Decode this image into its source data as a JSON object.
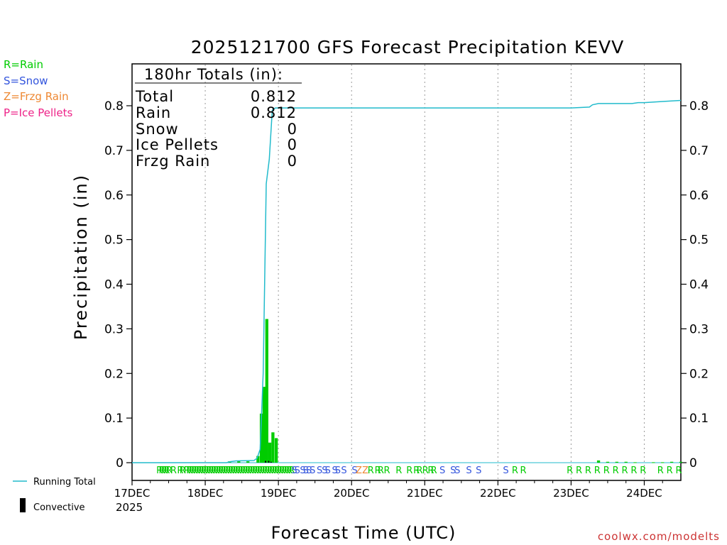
{
  "chart_data": {
    "type": "bar",
    "title": "2025121700 GFS Forecast Precipitation KEVV",
    "xlabel": "Forecast Time (UTC)",
    "ylabel": "Precipitation (in)",
    "ylim": [
      0,
      0.9
    ],
    "xlim_hours": [
      0,
      180
    ],
    "y_ticks": [
      0,
      0.1,
      0.2,
      0.3,
      0.4,
      0.5,
      0.6,
      0.7,
      0.8
    ],
    "y_tick_labels": [
      "0",
      "0.1",
      "0.2",
      "0.3",
      "0.4",
      "0.5",
      "0.6",
      "0.7",
      "0.8"
    ],
    "x_ticks": [
      {
        "hour": 0,
        "label": "17DEC",
        "sublabel": "2025"
      },
      {
        "hour": 24,
        "label": "18DEC"
      },
      {
        "hour": 48,
        "label": "19DEC"
      },
      {
        "hour": 72,
        "label": "20DEC"
      },
      {
        "hour": 96,
        "label": "21DEC"
      },
      {
        "hour": 120,
        "label": "22DEC"
      },
      {
        "hour": 144,
        "label": "23DEC"
      },
      {
        "hour": 168,
        "label": "24DEC"
      }
    ],
    "grid": "vertical dotted at day boundaries",
    "colors": {
      "rain": "#00cc00",
      "snow": "#3355dd",
      "frzg_rain": "#ee8833",
      "ice_pellets": "#ee2288",
      "running_total": "#22bbcc",
      "convective": "#000000"
    },
    "legend_type_codes": [
      {
        "code": "R",
        "text": "R=Rain",
        "color": "#00cc00"
      },
      {
        "code": "S",
        "text": "S=Snow",
        "color": "#3355dd"
      },
      {
        "code": "Z",
        "text": "Z=Frzg Rain",
        "color": "#ee8833"
      },
      {
        "code": "P",
        "text": "P=Ice Pellets",
        "color": "#ee2288"
      }
    ],
    "legend_series": [
      {
        "name": "Running Total",
        "color": "#22bbcc"
      },
      {
        "name": "Convective",
        "color": "#000000"
      }
    ],
    "totals_box": {
      "header": "180hr Totals (in):",
      "rows": [
        {
          "label": "Total",
          "value": "0.812"
        },
        {
          "label": "Rain",
          "value": "0.812"
        },
        {
          "label": "Snow",
          "value": "0"
        },
        {
          "label": "Ice Pellets",
          "value": "0"
        },
        {
          "label": "Frzg Rain",
          "value": "0"
        }
      ]
    },
    "series": [
      {
        "name": "Running Total",
        "type": "line",
        "points": [
          [
            0,
            0
          ],
          [
            31,
            0
          ],
          [
            32,
            0.002
          ],
          [
            34,
            0.004
          ],
          [
            40,
            0.005
          ],
          [
            41,
            0.01
          ],
          [
            42,
            0.03
          ],
          [
            43,
            0.2
          ],
          [
            44,
            0.625
          ],
          [
            45,
            0.68
          ],
          [
            46,
            0.79
          ],
          [
            47,
            0.795
          ],
          [
            120,
            0.795
          ],
          [
            144,
            0.795
          ],
          [
            150,
            0.797
          ],
          [
            151,
            0.802
          ],
          [
            153,
            0.805
          ],
          [
            164,
            0.805
          ],
          [
            166,
            0.807
          ],
          [
            168,
            0.807
          ],
          [
            175,
            0.81
          ],
          [
            180,
            0.812
          ]
        ]
      },
      {
        "name": "Precipitation",
        "type": "bar",
        "bars": [
          {
            "hour": 32,
            "value": 0.003
          },
          {
            "hour": 35,
            "value": 0.003
          },
          {
            "hour": 38,
            "value": 0.003
          },
          {
            "hour": 41.3,
            "value": 0.015
          },
          {
            "hour": 42.4,
            "value": 0.11
          },
          {
            "hour": 43.3,
            "value": 0.17
          },
          {
            "hour": 44.2,
            "value": 0.322
          },
          {
            "hour": 45.2,
            "value": 0.045
          },
          {
            "hour": 46.2,
            "value": 0.068
          },
          {
            "hour": 47.3,
            "value": 0.055
          },
          {
            "hour": 153,
            "value": 0.005
          },
          {
            "hour": 156,
            "value": 0.002
          },
          {
            "hour": 159,
            "value": 0.002
          },
          {
            "hour": 162,
            "value": 0.002
          },
          {
            "hour": 165,
            "value": 0.001
          },
          {
            "hour": 171,
            "value": 0.001
          },
          {
            "hour": 174,
            "value": 0.001
          },
          {
            "hour": 177,
            "value": 0.002
          },
          {
            "hour": 180,
            "value": 0.002
          }
        ]
      },
      {
        "name": "Convective",
        "type": "bar",
        "bars": [
          {
            "hour": 43.8,
            "value": 0.004
          },
          {
            "hour": 44.8,
            "value": 0.004
          },
          {
            "hour": 45.6,
            "value": 0.002
          }
        ]
      }
    ],
    "precip_type_markers": [
      {
        "hour": 9,
        "code": "R"
      },
      {
        "hour": 9.8,
        "code": "R"
      },
      {
        "hour": 10.6,
        "code": "R"
      },
      {
        "hour": 11.4,
        "code": "R"
      },
      {
        "hour": 12.2,
        "code": "R"
      },
      {
        "hour": 13.6,
        "code": "R"
      },
      {
        "hour": 15.8,
        "code": "R"
      },
      {
        "hour": 16.6,
        "code": "R"
      },
      {
        "hour": 18,
        "code": "R"
      },
      {
        "hour": 18.8,
        "code": "R"
      },
      {
        "hour": 19.6,
        "code": "R"
      },
      {
        "hour": 20.4,
        "code": "R"
      },
      {
        "hour": 21.2,
        "code": "R"
      },
      {
        "hour": 22,
        "code": "R"
      },
      {
        "hour": 22.8,
        "code": "R"
      },
      {
        "hour": 23.6,
        "code": "R"
      },
      {
        "hour": 24.4,
        "code": "R"
      },
      {
        "hour": 25.2,
        "code": "R"
      },
      {
        "hour": 26,
        "code": "R"
      },
      {
        "hour": 26.8,
        "code": "R"
      },
      {
        "hour": 27.6,
        "code": "R"
      },
      {
        "hour": 28.4,
        "code": "R"
      },
      {
        "hour": 29.2,
        "code": "R"
      },
      {
        "hour": 30,
        "code": "R"
      },
      {
        "hour": 30.8,
        "code": "R"
      },
      {
        "hour": 31.6,
        "code": "R"
      },
      {
        "hour": 32.4,
        "code": "R"
      },
      {
        "hour": 33.2,
        "code": "R"
      },
      {
        "hour": 34,
        "code": "R"
      },
      {
        "hour": 34.8,
        "code": "R"
      },
      {
        "hour": 35.6,
        "code": "R"
      },
      {
        "hour": 36.4,
        "code": "R"
      },
      {
        "hour": 37.2,
        "code": "R"
      },
      {
        "hour": 38,
        "code": "R"
      },
      {
        "hour": 38.8,
        "code": "R"
      },
      {
        "hour": 39.6,
        "code": "R"
      },
      {
        "hour": 40.4,
        "code": "R"
      },
      {
        "hour": 41.2,
        "code": "R"
      },
      {
        "hour": 42,
        "code": "R"
      },
      {
        "hour": 42.8,
        "code": "R"
      },
      {
        "hour": 43.6,
        "code": "R"
      },
      {
        "hour": 44.4,
        "code": "R"
      },
      {
        "hour": 45.2,
        "code": "R"
      },
      {
        "hour": 46,
        "code": "R"
      },
      {
        "hour": 46.8,
        "code": "R"
      },
      {
        "hour": 47.6,
        "code": "R"
      },
      {
        "hour": 48.4,
        "code": "R"
      },
      {
        "hour": 49.2,
        "code": "R"
      },
      {
        "hour": 50,
        "code": "R"
      },
      {
        "hour": 50.8,
        "code": "R"
      },
      {
        "hour": 51.6,
        "code": "R"
      },
      {
        "hour": 52.4,
        "code": "R"
      },
      {
        "hour": 53.2,
        "code": "S"
      },
      {
        "hour": 54.2,
        "code": "S"
      },
      {
        "hour": 56,
        "code": "S"
      },
      {
        "hour": 57,
        "code": "S"
      },
      {
        "hour": 58,
        "code": "S"
      },
      {
        "hour": 59.2,
        "code": "S"
      },
      {
        "hour": 61.5,
        "code": "S"
      },
      {
        "hour": 63.2,
        "code": "S"
      },
      {
        "hour": 64.2,
        "code": "S"
      },
      {
        "hour": 66.5,
        "code": "S"
      },
      {
        "hour": 67.5,
        "code": "S"
      },
      {
        "hour": 69.5,
        "code": "S"
      },
      {
        "hour": 73,
        "code": "S"
      },
      {
        "hour": 74.4,
        "code": "Z"
      },
      {
        "hour": 76.5,
        "code": "Z"
      },
      {
        "hour": 78.3,
        "code": "R"
      },
      {
        "hour": 80.6,
        "code": "R"
      },
      {
        "hour": 81.6,
        "code": "R"
      },
      {
        "hour": 83.6,
        "code": "R"
      },
      {
        "hour": 87.5,
        "code": "R"
      },
      {
        "hour": 91,
        "code": "R"
      },
      {
        "hour": 93.3,
        "code": "R"
      },
      {
        "hour": 94.3,
        "code": "R"
      },
      {
        "hour": 96.2,
        "code": "R"
      },
      {
        "hour": 98,
        "code": "R"
      },
      {
        "hour": 99,
        "code": "R"
      },
      {
        "hour": 101.8,
        "code": "S"
      },
      {
        "hour": 105.3,
        "code": "S"
      },
      {
        "hour": 106.7,
        "code": "S"
      },
      {
        "hour": 110.5,
        "code": "S"
      },
      {
        "hour": 113.7,
        "code": "S"
      },
      {
        "hour": 122.6,
        "code": "S"
      },
      {
        "hour": 125.6,
        "code": "R"
      },
      {
        "hour": 128.3,
        "code": "R"
      },
      {
        "hour": 143.6,
        "code": "R"
      },
      {
        "hour": 146.6,
        "code": "R"
      },
      {
        "hour": 149.6,
        "code": "R"
      },
      {
        "hour": 152.6,
        "code": "R"
      },
      {
        "hour": 155.6,
        "code": "R"
      },
      {
        "hour": 158.6,
        "code": "R"
      },
      {
        "hour": 161.6,
        "code": "R"
      },
      {
        "hour": 164.6,
        "code": "R"
      },
      {
        "hour": 167.6,
        "code": "R"
      },
      {
        "hour": 173.3,
        "code": "R"
      },
      {
        "hour": 176.3,
        "code": "R"
      },
      {
        "hour": 179.3,
        "code": "R"
      }
    ],
    "watermark": "coolwx.com/modelts"
  }
}
